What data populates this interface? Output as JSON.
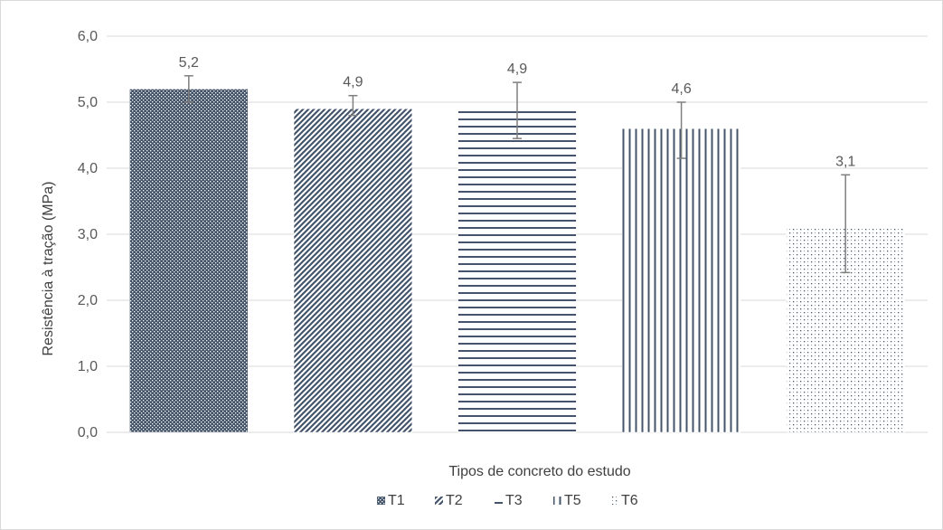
{
  "chart_data": {
    "type": "bar",
    "categories": [
      "T1",
      "T2",
      "T3",
      "T5",
      "T6"
    ],
    "values": [
      5.2,
      4.9,
      4.9,
      4.6,
      3.1
    ],
    "error_high": [
      5.4,
      5.1,
      5.3,
      5.0,
      3.9
    ],
    "error_low": [
      5.0,
      4.8,
      4.45,
      4.15,
      2.42
    ],
    "data_labels": [
      "5,2",
      "4,9",
      "4,9",
      "4,6",
      "3,1"
    ],
    "title": "",
    "xlabel": "Tipos de concreto do estudo",
    "ylabel": "Resistência à tração (MPa)",
    "ylim": [
      0,
      6
    ],
    "yticks": [
      "0,0",
      "1,0",
      "2,0",
      "3,0",
      "4,0",
      "5,0",
      "6,0"
    ],
    "grid": true,
    "legend_position": "bottom",
    "legend": [
      "T1",
      "T2",
      "T3",
      "T5",
      "T6"
    ],
    "colors": {
      "bar": "#44546a",
      "grid": "#d9d9d9",
      "error": "#7f7f7f",
      "text": "#595959"
    },
    "patterns": [
      "dots-dense",
      "diagonal",
      "horizontal",
      "vertical",
      "sparse-dots"
    ]
  }
}
